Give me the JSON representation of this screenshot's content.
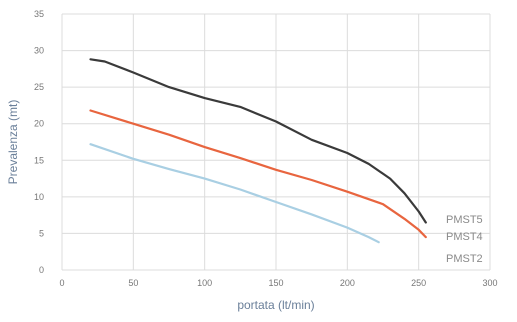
{
  "chart_data": {
    "type": "line",
    "title": "",
    "xlabel": "portata (lt/min)",
    "ylabel": "Prevalenza (mt)",
    "xlim": [
      0,
      300
    ],
    "ylim": [
      0,
      35
    ],
    "x_ticks": [
      0,
      50,
      100,
      150,
      200,
      250,
      300
    ],
    "y_ticks": [
      0,
      5,
      10,
      15,
      20,
      25,
      30,
      35
    ],
    "grid": true,
    "legend": "inline labels at line ends (right)",
    "series": [
      {
        "name": "PMST5",
        "color": "#3a3a3a",
        "points": [
          [
            20,
            28.8
          ],
          [
            30,
            28.5
          ],
          [
            50,
            27.0
          ],
          [
            75,
            25.0
          ],
          [
            100,
            23.5
          ],
          [
            125,
            22.3
          ],
          [
            150,
            20.3
          ],
          [
            175,
            17.8
          ],
          [
            200,
            16.0
          ],
          [
            215,
            14.5
          ],
          [
            230,
            12.5
          ],
          [
            240,
            10.5
          ],
          [
            250,
            8.0
          ],
          [
            255,
            6.5
          ]
        ]
      },
      {
        "name": "PMST4",
        "color": "#e8653f",
        "points": [
          [
            20,
            21.8
          ],
          [
            50,
            20.0
          ],
          [
            75,
            18.5
          ],
          [
            100,
            16.8
          ],
          [
            125,
            15.3
          ],
          [
            150,
            13.7
          ],
          [
            175,
            12.3
          ],
          [
            200,
            10.7
          ],
          [
            225,
            9.0
          ],
          [
            240,
            7.0
          ],
          [
            250,
            5.5
          ],
          [
            255,
            4.5
          ]
        ]
      },
      {
        "name": "PMST2",
        "color": "#a9cfe3",
        "points": [
          [
            20,
            17.2
          ],
          [
            50,
            15.2
          ],
          [
            75,
            13.8
          ],
          [
            100,
            12.5
          ],
          [
            125,
            11.0
          ],
          [
            150,
            9.3
          ],
          [
            175,
            7.6
          ],
          [
            200,
            5.8
          ],
          [
            215,
            4.5
          ],
          [
            222,
            3.8
          ]
        ]
      }
    ]
  }
}
